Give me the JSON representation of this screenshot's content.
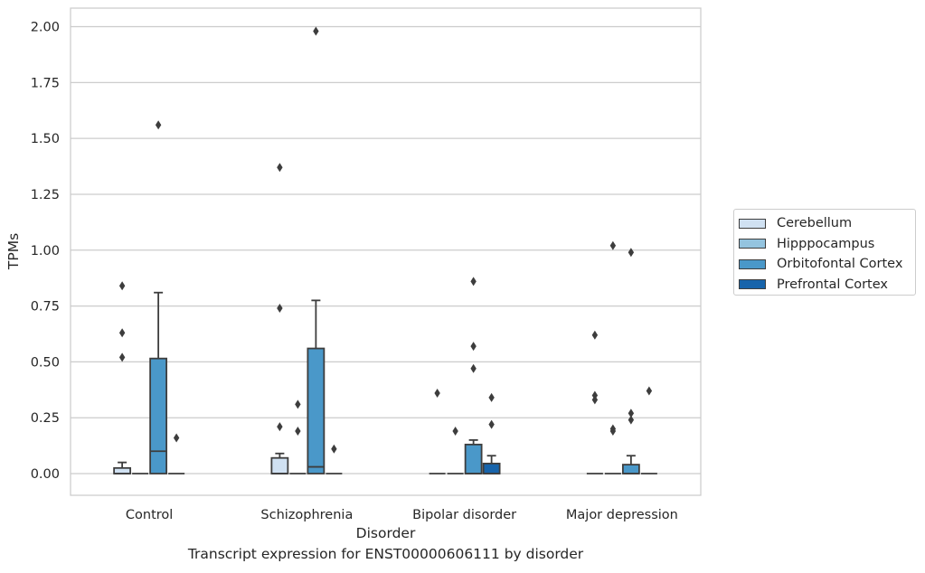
{
  "chart_data": {
    "type": "box",
    "title": "Transcript expression for ENST00000606111 by disorder",
    "xlabel": "Disorder",
    "ylabel": "TPMs",
    "ylim": [
      -0.1,
      2.08
    ],
    "yticks": [
      "0.00",
      "0.25",
      "0.50",
      "0.75",
      "1.00",
      "1.25",
      "1.50",
      "1.75",
      "2.00"
    ],
    "ytick_values": [
      0,
      0.25,
      0.5,
      0.75,
      1.0,
      1.25,
      1.5,
      1.75,
      2.0
    ],
    "grid": "horizontal",
    "legend_placement": "right",
    "categories": [
      "Control",
      "Schizophrenia",
      "Bipolar disorder",
      "Major depression"
    ],
    "series": [
      {
        "name": "Cerebellum",
        "color": "#d0e1f2",
        "boxes": [
          {
            "q1": 0,
            "median": 0,
            "q3": 0.025,
            "whisker_low": 0,
            "whisker_high": 0.05,
            "outliers": [
              0.84,
              0.63,
              0.52
            ]
          },
          {
            "q1": 0,
            "median": 0,
            "q3": 0.07,
            "whisker_low": 0,
            "whisker_high": 0.09,
            "outliers": [
              1.37,
              0.74,
              0.21
            ]
          },
          {
            "q1": 0,
            "median": 0,
            "q3": 0,
            "whisker_low": 0,
            "whisker_high": 0,
            "outliers": [
              0.36
            ]
          },
          {
            "q1": 0,
            "median": 0,
            "q3": 0,
            "whisker_low": 0,
            "whisker_high": 0,
            "outliers": [
              0.62,
              0.35,
              0.33
            ]
          }
        ]
      },
      {
        "name": "Hipppocampus",
        "color": "#94c4df",
        "boxes": [
          {
            "q1": 0,
            "median": 0,
            "q3": 0,
            "whisker_low": 0,
            "whisker_high": 0,
            "outliers": []
          },
          {
            "q1": 0,
            "median": 0,
            "q3": 0,
            "whisker_low": 0,
            "whisker_high": 0,
            "outliers": [
              0.31,
              0.19
            ]
          },
          {
            "q1": 0,
            "median": 0,
            "q3": 0,
            "whisker_low": 0,
            "whisker_high": 0,
            "outliers": [
              0.19
            ]
          },
          {
            "q1": 0,
            "median": 0,
            "q3": 0,
            "whisker_low": 0,
            "whisker_high": 0,
            "outliers": [
              1.02,
              0.2,
              0.19
            ]
          }
        ]
      },
      {
        "name": "Orbitofontal Cortex",
        "color": "#4a98c9",
        "boxes": [
          {
            "q1": 0,
            "median": 0.1,
            "q3": 0.515,
            "whisker_low": 0,
            "whisker_high": 0.81,
            "outliers": [
              1.56
            ]
          },
          {
            "q1": 0,
            "median": 0.03,
            "q3": 0.56,
            "whisker_low": 0,
            "whisker_high": 0.775,
            "outliers": [
              1.98
            ]
          },
          {
            "q1": 0,
            "median": 0,
            "q3": 0.13,
            "whisker_low": 0,
            "whisker_high": 0.15,
            "outliers": [
              0.86,
              0.57,
              0.47
            ]
          },
          {
            "q1": 0,
            "median": 0,
            "q3": 0.04,
            "whisker_low": 0,
            "whisker_high": 0.08,
            "outliers": [
              0.99,
              0.27,
              0.24
            ]
          }
        ]
      },
      {
        "name": "Prefrontal Cortex",
        "color": "#1764ab",
        "boxes": [
          {
            "q1": 0,
            "median": 0,
            "q3": 0,
            "whisker_low": 0,
            "whisker_high": 0,
            "outliers": [
              0.16
            ]
          },
          {
            "q1": 0,
            "median": 0,
            "q3": 0,
            "whisker_low": 0,
            "whisker_high": 0,
            "outliers": [
              0.11
            ]
          },
          {
            "q1": 0,
            "median": 0,
            "q3": 0.045,
            "whisker_low": 0,
            "whisker_high": 0.08,
            "outliers": [
              0.34,
              0.22
            ]
          },
          {
            "q1": 0,
            "median": 0,
            "q3": 0,
            "whisker_low": 0,
            "whisker_high": 0,
            "outliers": [
              0.37
            ]
          }
        ]
      }
    ]
  }
}
